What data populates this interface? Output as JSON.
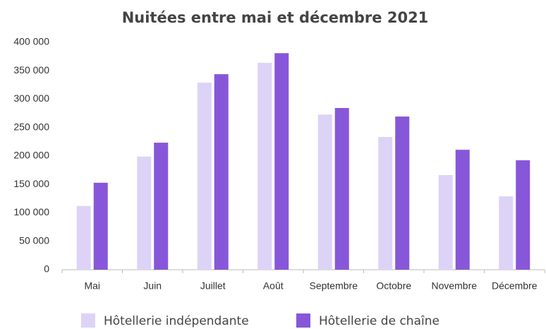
{
  "chart_data": {
    "type": "bar",
    "title": "Nuitées entre mai et décembre 2021",
    "categories": [
      "Mai",
      "Juin",
      "Juillet",
      "Août",
      "Septembre",
      "Octobre",
      "Novembre",
      "Décembre"
    ],
    "series": [
      {
        "name": "Hôtellerie indépendante",
        "color": "#ddd3f7",
        "values": [
          112000,
          199000,
          329000,
          364000,
          273000,
          233500,
          166500,
          129000
        ]
      },
      {
        "name": "Hôtellerie de chaîne",
        "color": "#8757d9",
        "values": [
          153000,
          223500,
          344000,
          381000,
          284500,
          269500,
          211000,
          192500
        ]
      }
    ],
    "ylim": [
      0,
      400000
    ],
    "yticks": [
      0,
      {
        "value": 50000,
        "label": "50 000"
      },
      {
        "value": 100000,
        "label": "100 000"
      },
      {
        "value": 150000,
        "label": "150 000"
      },
      {
        "value": 200000,
        "label": "200 000"
      },
      {
        "value": 250000,
        "label": "250 000"
      },
      {
        "value": 300000,
        "label": "300 000"
      },
      {
        "value": 350000,
        "label": "350 000"
      },
      {
        "value": 400000,
        "label": "400 000"
      }
    ],
    "grid": false,
    "legend": "bottom"
  }
}
